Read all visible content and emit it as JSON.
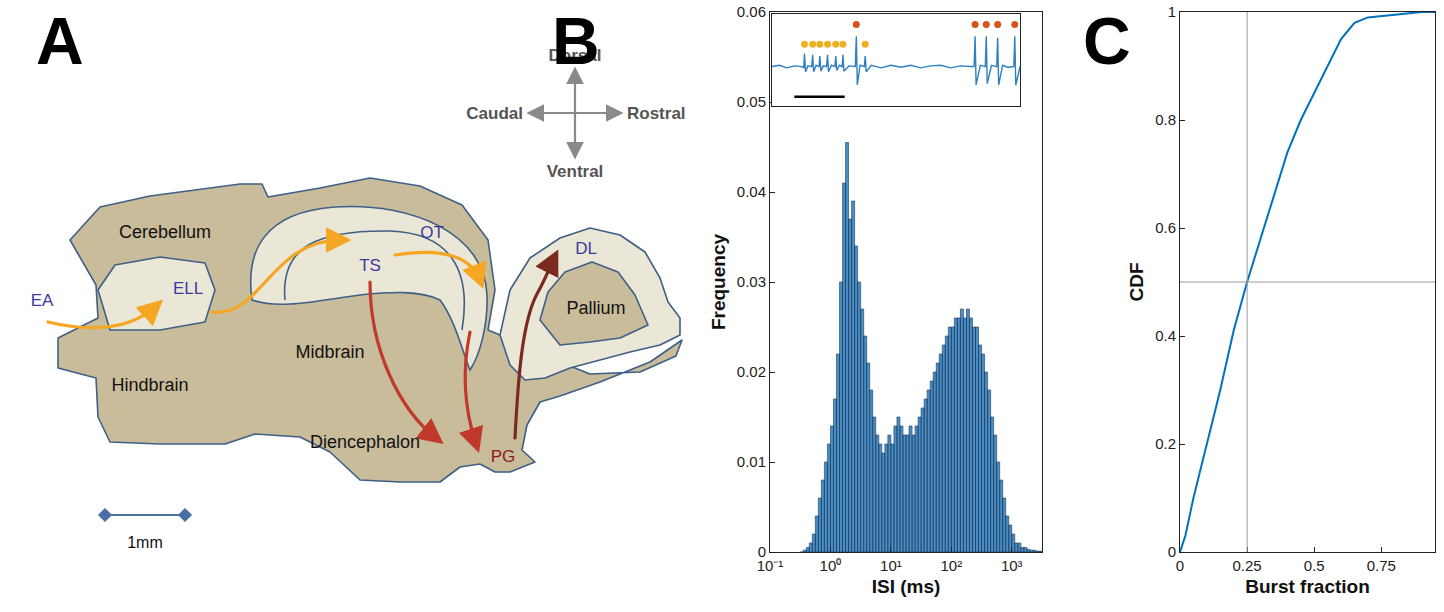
{
  "panel_letters": [
    "A",
    "B",
    "C"
  ],
  "diagram": {
    "regions": [
      "Cerebellum",
      "Midbrain",
      "Hindbrain",
      "Diencephalon",
      "Pallium"
    ],
    "nuclei": [
      "EA",
      "ELL",
      "TS",
      "OT",
      "DL",
      "PG"
    ],
    "directions": [
      "Dorsal",
      "Ventral",
      "Caudal",
      "Rostral"
    ],
    "scale_bar": "1mm"
  },
  "chart_data": [
    {
      "type": "histogram",
      "x_label": "ISI (ms)",
      "y_label": "Frequency",
      "color": "#4b8ec6",
      "log": "x",
      "grid": false,
      "bins": [
        0.3162,
        0.3548,
        0.3981,
        0.4467,
        0.5012,
        0.5623,
        0.631,
        0.7079,
        0.7943,
        0.8913,
        1,
        1.122,
        1.259,
        1.413,
        1.585,
        1.778,
        1.995,
        2.239,
        2.512,
        2.818,
        3.162,
        3.548,
        3.981,
        4.467,
        5.012,
        5.623,
        6.31,
        7.079,
        7.943,
        8.913,
        10,
        11.22,
        12.59,
        14.13,
        15.85,
        17.78,
        19.95,
        22.39,
        25.12,
        28.18,
        31.62,
        35.48,
        39.81,
        44.67,
        50.12,
        56.23,
        63.1,
        70.79,
        79.43,
        89.13,
        100,
        112.2,
        125.9,
        141.3,
        158.5,
        177.8,
        199.5,
        223.9,
        251.2,
        281.8,
        316.2,
        354.8,
        398.1,
        446.7,
        501.2,
        562.3,
        631,
        707.9,
        794.3,
        891.3,
        1000,
        1122,
        1259,
        1413,
        1585,
        1778,
        1995,
        2239,
        2512,
        2818,
        3162
      ],
      "counts": [
        0,
        0.0002,
        0.0005,
        0.001,
        0.002,
        0.004,
        0.006,
        0.008,
        0.01,
        0.012,
        0.014,
        0.017,
        0.022,
        0.03,
        0.041,
        0.0455,
        0.037,
        0.039,
        0.034,
        0.03,
        0.027,
        0.024,
        0.021,
        0.018,
        0.015,
        0.013,
        0.012,
        0.011,
        0.012,
        0.013,
        0.012,
        0.014,
        0.015,
        0.014,
        0.013,
        0.013,
        0.014,
        0.013,
        0.014,
        0.015,
        0.016,
        0.017,
        0.018,
        0.019,
        0.02,
        0.021,
        0.022,
        0.023,
        0.024,
        0.025,
        0.025,
        0.026,
        0.026,
        0.027,
        0.026,
        0.027,
        0.026,
        0.025,
        0.025,
        0.023,
        0.022,
        0.02,
        0.018,
        0.015,
        0.013,
        0.01,
        0.008,
        0.006,
        0.004,
        0.003,
        0.002,
        0.001,
        0.001,
        0.0005,
        0.0005,
        0.0003,
        0.0002,
        0.0002,
        0.0001,
        0.0001
      ],
      "xlim": [
        0.1,
        3162
      ],
      "xticks": [
        {
          "value": 0.1,
          "label": "10⁻¹"
        },
        {
          "value": 1,
          "label": "10⁰"
        },
        {
          "value": 10,
          "label": "10¹"
        },
        {
          "value": 100,
          "label": "10²"
        },
        {
          "value": 1000,
          "label": "10³"
        }
      ],
      "ylim": [
        0,
        0.06
      ],
      "yticks": [
        0,
        0.01,
        0.02,
        0.03,
        0.04,
        0.05,
        0.06
      ],
      "inset": {
        "type": "line",
        "color": "#2f7fc1",
        "tick_labels": false,
        "xlim": [
          0,
          100
        ],
        "ylim": [
          -3,
          4
        ],
        "x": [
          0,
          3,
          6,
          9,
          12,
          12.8,
          13.1,
          13.5,
          14.5,
          16,
          16.4,
          16.8,
          17.8,
          19,
          19.3,
          19.7,
          20.7,
          22,
          22.4,
          22.8,
          24,
          25.4,
          25.7,
          26.1,
          27.2,
          28.3,
          28.6,
          29,
          31,
          33.6,
          34,
          34.4,
          35.5,
          37.2,
          37.6,
          38,
          40,
          44,
          48,
          52,
          56,
          60,
          64,
          68,
          72,
          76,
          80,
          81.5,
          81.9,
          82.3,
          84,
          86,
          86.4,
          86.8,
          88.5,
          90.6,
          91,
          91.4,
          93,
          95,
          97.5,
          97.9,
          98.3,
          100
        ],
        "values": [
          0,
          0.1,
          -0.1,
          0.05,
          0,
          -0.1,
          1,
          -0.4,
          0.05,
          0,
          0.9,
          -0.4,
          0.1,
          0,
          0.8,
          -0.35,
          0.05,
          0,
          0.9,
          -0.4,
          0.1,
          0,
          0.8,
          -0.3,
          0.1,
          0,
          0.9,
          -0.35,
          0.05,
          0,
          2.3,
          -1.4,
          0.1,
          0,
          0.8,
          -0.4,
          0.1,
          -0.1,
          0.1,
          -0.05,
          0.1,
          -0.1,
          0.05,
          0.1,
          -0.1,
          0.05,
          0,
          0,
          2.3,
          -1.4,
          0.1,
          0,
          2.3,
          -1.3,
          0.1,
          0,
          2.2,
          -1.4,
          0.1,
          -0.05,
          0,
          2.3,
          -1.4,
          0
        ],
        "markers": [
          {
            "color": "#edb120",
            "x": [
              13.1,
              16.4,
              19.3,
              22.4,
              25.7,
              28.6,
              37.6
            ],
            "y": [
              1.7,
              1.7,
              1.7,
              1.7,
              1.7,
              1.7,
              1.7
            ]
          },
          {
            "color": "#d95319",
            "x": [
              34,
              81.9,
              86.4,
              91,
              97.9
            ],
            "y": [
              3.2,
              3.2,
              3.2,
              3.2,
              3.2
            ]
          }
        ],
        "scale_bar": {
          "x": [
            9,
            29.3
          ],
          "y": -2.3
        }
      }
    },
    {
      "type": "line",
      "x_label": "Burst fraction",
      "y_label": "CDF",
      "color": "#0072bd",
      "grid": false,
      "x": [
        0,
        0.02,
        0.05,
        0.1,
        0.15,
        0.2,
        0.25,
        0.3,
        0.35,
        0.4,
        0.45,
        0.5,
        0.55,
        0.6,
        0.65,
        0.7,
        0.8,
        0.9,
        0.95
      ],
      "values": [
        0,
        0.03,
        0.1,
        0.2,
        0.3,
        0.41,
        0.5,
        0.58,
        0.66,
        0.74,
        0.8,
        0.85,
        0.9,
        0.95,
        0.98,
        0.99,
        0.995,
        1,
        1
      ],
      "xlim": [
        0,
        0.95
      ],
      "xticks": [
        0,
        0.25,
        0.5,
        0.75
      ],
      "ylim": [
        0,
        1
      ],
      "yticks": [
        0,
        0.2,
        0.4,
        0.6,
        0.8,
        1
      ],
      "reference_lines": {
        "x": 0.25,
        "y": 0.5
      }
    }
  ]
}
